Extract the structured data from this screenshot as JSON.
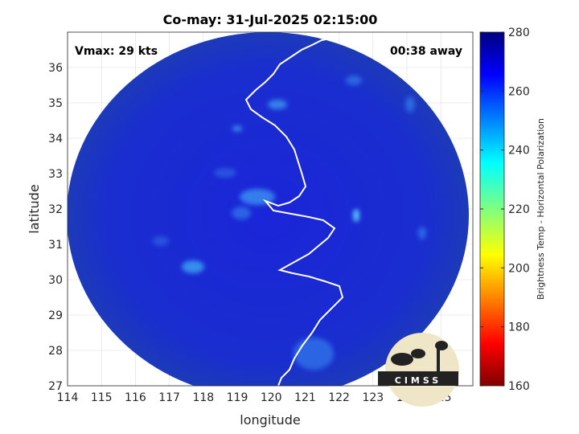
{
  "chart_data": {
    "type": "heatmap",
    "title": "Co-may: 31-Jul-2025 02:15:00",
    "xlabel": "longitude",
    "ylabel": "latitude",
    "xlim": [
      114,
      126
    ],
    "ylim": [
      27,
      37
    ],
    "xticks": [
      "114",
      "115",
      "116",
      "117",
      "118",
      "119",
      "120",
      "121",
      "122",
      "123",
      "124",
      "125"
    ],
    "yticks": [
      "27",
      "28",
      "29",
      "30",
      "31",
      "32",
      "33",
      "34",
      "35",
      "36"
    ],
    "grid": true,
    "colorbar": {
      "label": "Brightness Temp - Horizontal Polarization",
      "range": [
        160,
        280
      ],
      "ticks": [
        "280",
        "260",
        "240",
        "220",
        "200",
        "180",
        "160"
      ],
      "colormap": "jet"
    },
    "annotations": {
      "vmax": "Vmax: 29 kts",
      "away": "00:38 away"
    },
    "logo": "CIMSS"
  },
  "colors": {
    "background_field": "#1a2fc8",
    "coast": "#ffffff",
    "axis": "#262626"
  }
}
